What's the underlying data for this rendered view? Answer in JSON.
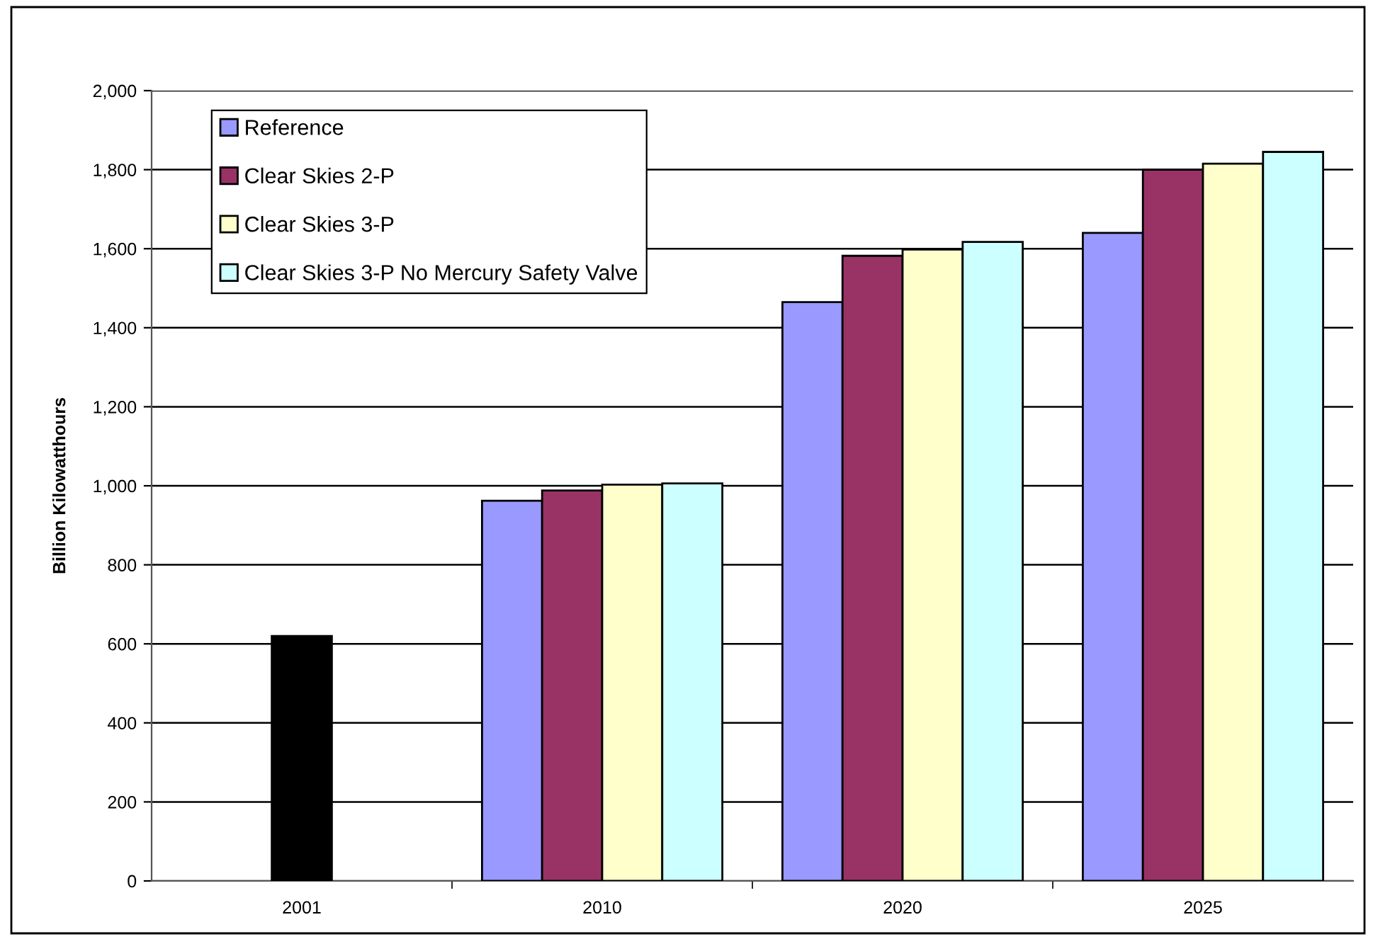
{
  "chart_data": {
    "type": "bar",
    "ylabel": "Billion Kilowatthours",
    "categories": [
      "2001",
      "2010",
      "2020",
      "2025"
    ],
    "series": [
      {
        "name": "Reference",
        "color": "#9999ff",
        "values": [
          null,
          962,
          1465,
          1640
        ]
      },
      {
        "name": "Clear Skies 2-P",
        "color": "#993366",
        "values": [
          null,
          988,
          1582,
          1800
        ]
      },
      {
        "name": "Clear Skies 3-P",
        "color": "#ffffcc",
        "values": [
          null,
          1003,
          1598,
          1815
        ]
      },
      {
        "name": "Clear Skies 3-P No Mercury Safety Valve",
        "color": "#ccffff",
        "values": [
          null,
          1006,
          1617,
          1845
        ]
      },
      {
        "color": "#000000",
        "values": [
          620,
          null,
          null,
          null
        ]
      }
    ],
    "ylim": [
      0,
      2000
    ],
    "yticks": [
      {
        "value": 0,
        "label": "0"
      },
      {
        "value": 200,
        "label": "200"
      },
      {
        "value": 400,
        "label": "400"
      },
      {
        "value": 600,
        "label": "600"
      },
      {
        "value": 800,
        "label": "800"
      },
      {
        "value": 1000,
        "label": "1,000"
      },
      {
        "value": 1200,
        "label": "1,200"
      },
      {
        "value": 1400,
        "label": "1,400"
      },
      {
        "value": 1600,
        "label": "1,600"
      },
      {
        "value": 1800,
        "label": "1,800"
      },
      {
        "value": 2000,
        "label": "2,000"
      }
    ],
    "grid": "y",
    "legend": "top left"
  }
}
